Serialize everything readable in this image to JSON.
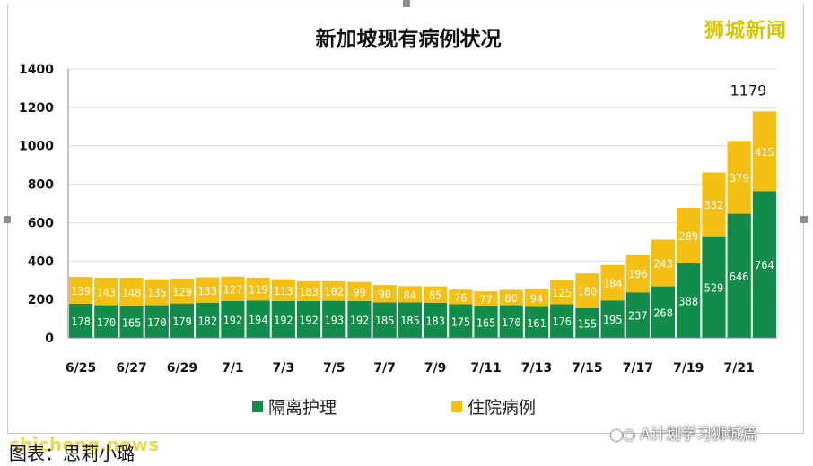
{
  "brand": "狮城新闻",
  "caption": "图表：思莉小璐",
  "watermark": "shicheng.news",
  "wechat": {
    "icon": "wechat-icon",
    "label": "A计划学习狮城篇"
  },
  "colors": {
    "isolation": "#128c4a",
    "hospital": "#f5bf14",
    "text_white": "#ffffff"
  },
  "chart_data": {
    "type": "bar",
    "stacked": true,
    "title": "新加坡现有病例状况",
    "xlabel": "",
    "ylabel": "",
    "ylim": [
      0,
      1400
    ],
    "yticks": [
      0,
      200,
      400,
      600,
      800,
      1000,
      1200,
      1400
    ],
    "grid": true,
    "legend_position": "bottom",
    "categories": [
      "6/25",
      "6/26",
      "6/27",
      "6/28",
      "6/29",
      "6/30",
      "7/1",
      "7/2",
      "7/3",
      "7/4",
      "7/5",
      "7/6",
      "7/7",
      "7/8",
      "7/9",
      "7/10",
      "7/11",
      "7/12",
      "7/13",
      "7/14",
      "7/15",
      "7/16",
      "7/17",
      "7/18",
      "7/19",
      "7/20",
      "7/21",
      "7/22"
    ],
    "tick_labels": [
      "6/25",
      "",
      "6/27",
      "",
      "6/29",
      "",
      "7/1",
      "",
      "7/3",
      "",
      "7/5",
      "",
      "7/7",
      "",
      "7/9",
      "",
      "7/11",
      "",
      "7/13",
      "",
      "7/15",
      "",
      "7/17",
      "",
      "7/19",
      "",
      "7/21",
      ""
    ],
    "series": [
      {
        "name": "隔离护理",
        "color": "#128c4a",
        "values": [
          178,
          170,
          165,
          170,
          179,
          182,
          192,
          194,
          192,
          192,
          193,
          192,
          185,
          185,
          183,
          175,
          165,
          170,
          161,
          176,
          155,
          195,
          237,
          268,
          388,
          529,
          646,
          764
        ]
      },
      {
        "name": "住院病例",
        "color": "#f5bf14",
        "values": [
          139,
          143,
          148,
          135,
          129,
          133,
          127,
          119,
          113,
          103,
          102,
          99,
          90,
          84,
          85,
          76,
          77,
          80,
          94,
          125,
          180,
          184,
          196,
          243,
          289,
          332,
          379,
          415
        ]
      }
    ],
    "annotations": [
      {
        "category": "7/22",
        "text": "1179"
      }
    ]
  }
}
